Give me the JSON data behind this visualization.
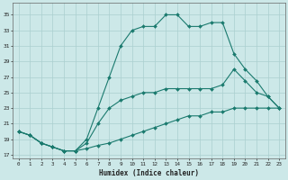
{
  "xlabel": "Humidex (Indice chaleur)",
  "background_color": "#cce8e8",
  "grid_color": "#aacfcf",
  "line_color": "#1a7a6e",
  "xlim": [
    -0.5,
    23.5
  ],
  "ylim": [
    16.5,
    36.5
  ],
  "yticks": [
    17,
    19,
    21,
    23,
    25,
    27,
    29,
    31,
    33,
    35
  ],
  "xticks": [
    0,
    1,
    2,
    3,
    4,
    5,
    6,
    7,
    8,
    9,
    10,
    11,
    12,
    13,
    14,
    15,
    16,
    17,
    18,
    19,
    20,
    21,
    22,
    23
  ],
  "series": [
    {
      "x": [
        0,
        1,
        2,
        3,
        4,
        5,
        6,
        7,
        8,
        9,
        10,
        11,
        12,
        13,
        14,
        15,
        16,
        17,
        18,
        19,
        20,
        21,
        22,
        23
      ],
      "y": [
        20,
        19.5,
        18.5,
        18,
        17.5,
        17.5,
        17.8,
        18.2,
        18.5,
        19,
        19.5,
        20,
        20.5,
        21,
        21.5,
        22,
        22,
        22.5,
        22.5,
        23,
        23,
        23,
        23,
        23
      ]
    },
    {
      "x": [
        0,
        1,
        2,
        3,
        4,
        5,
        6,
        7,
        8,
        9,
        10,
        11,
        12,
        13,
        14,
        15,
        16,
        17,
        18,
        19,
        20,
        21,
        22,
        23
      ],
      "y": [
        20,
        19.5,
        18.5,
        18,
        17.5,
        17.5,
        18.5,
        21,
        23,
        24,
        24.5,
        25,
        25,
        25.5,
        25.5,
        25.5,
        25.5,
        25.5,
        26,
        28,
        26.5,
        25,
        24.5,
        23
      ]
    },
    {
      "x": [
        0,
        1,
        2,
        3,
        4,
        5,
        6,
        7,
        8,
        9,
        10,
        11,
        12,
        13,
        14,
        15,
        16,
        17,
        18,
        19,
        20,
        21,
        22,
        23
      ],
      "y": [
        20,
        19.5,
        18.5,
        18,
        17.5,
        17.5,
        19,
        23,
        27,
        31,
        33,
        33.5,
        33.5,
        35,
        35,
        33.5,
        33.5,
        34,
        34,
        30,
        28,
        26.5,
        24.5,
        23
      ]
    }
  ]
}
